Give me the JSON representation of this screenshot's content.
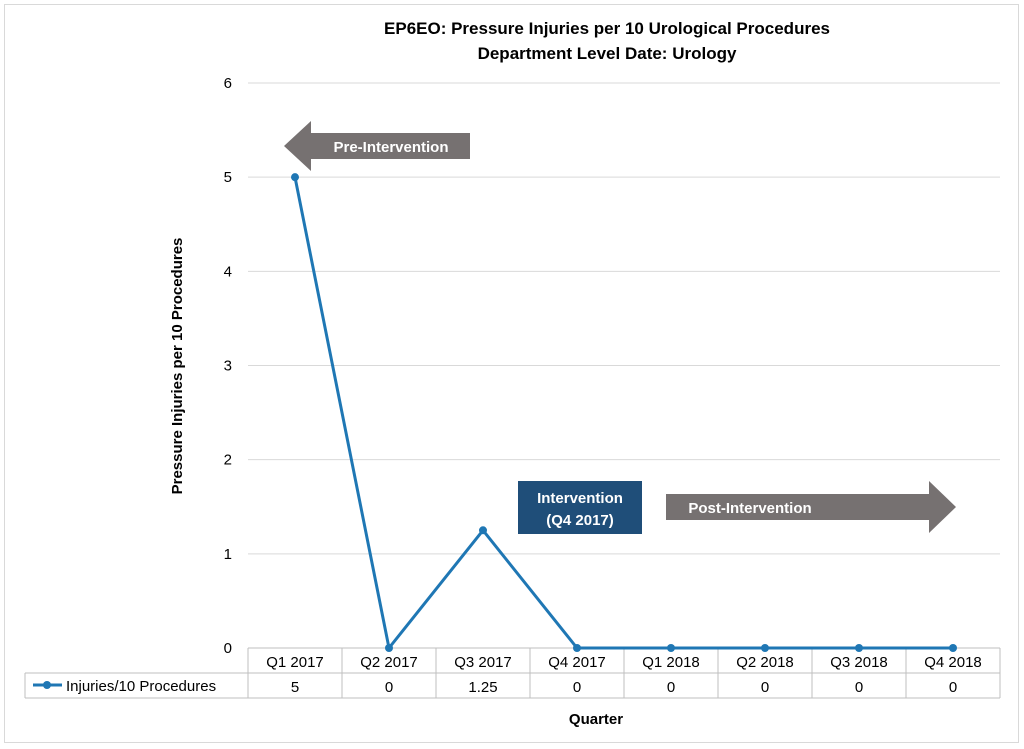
{
  "chart_data": {
    "type": "line",
    "title": "EP6EO: Pressure Injuries per 10 Urological Procedures",
    "subtitle": "Department Level Date: Urology",
    "xlabel": "Quarter",
    "ylabel": "Pressure Injuries per 10 Procedures",
    "categories": [
      "Q1 2017",
      "Q2 2017",
      "Q3 2017",
      "Q4 2017",
      "Q1 2018",
      "Q2 2018",
      "Q3 2018",
      "Q4 2018"
    ],
    "series": [
      {
        "name": "Injuries/10 Procedures",
        "values": [
          5,
          0,
          1.25,
          0,
          0,
          0,
          0,
          0
        ],
        "color": "#1f77b4"
      }
    ],
    "table_values": [
      "5",
      "0",
      "1.25",
      "0",
      "0",
      "0",
      "0",
      "0"
    ],
    "ylim": [
      0,
      6
    ],
    "yticks": [
      "0",
      "1",
      "2",
      "3",
      "4",
      "5",
      "6"
    ],
    "grid": true,
    "data_table": true,
    "annotations": {
      "pre": "Pre-Intervention",
      "intervention_line1": "Intervention",
      "intervention_line2": "(Q4 2017)",
      "post": "Post-Intervention"
    },
    "colors": {
      "arrow": "#767171",
      "intervention_box": "#1f4e79",
      "grid": "#d9d9d9"
    }
  }
}
